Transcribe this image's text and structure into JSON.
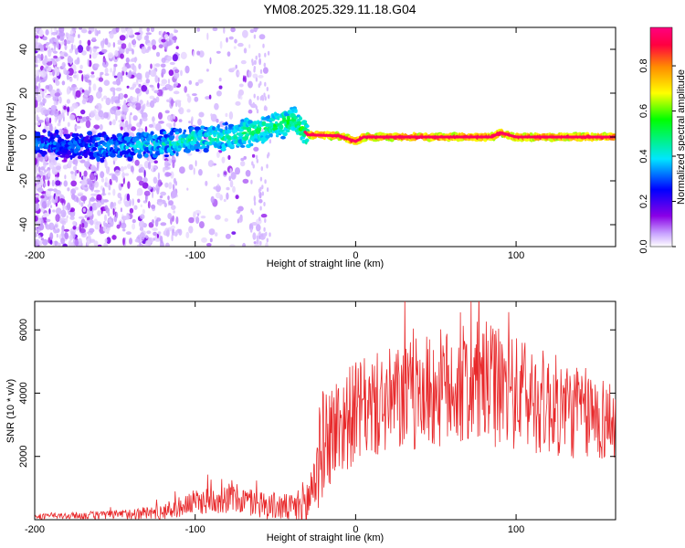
{
  "title": "YM08.2025.329.11.18.G04",
  "chart_data": [
    {
      "type": "heatmap",
      "xlabel": "Height of straight line (km)",
      "ylabel": "Frequency (Hz)",
      "xlim": [
        -200,
        162
      ],
      "ylim": [
        -50,
        50
      ],
      "xticks": [
        -200,
        -100,
        0,
        100
      ],
      "yticks": [
        -40,
        -20,
        0,
        20,
        40
      ],
      "colorbar": {
        "label": "Normalized spectral amplitude",
        "range": [
          0,
          0.97
        ],
        "ticks": [
          0.0,
          0.2,
          0.4,
          0.6,
          0.8
        ],
        "tick_labels": [
          "0.0",
          "0.2",
          "0.4",
          "0.6",
          "0.8"
        ],
        "colormap": [
          "#ffffff",
          "#8a00e6",
          "#0000ff",
          "#00e6ff",
          "#00ff00",
          "#ffff00",
          "#ff8c00",
          "#ff0040",
          "#ff0080"
        ]
      },
      "ridge": {
        "x": [
          -200,
          -180,
          -160,
          -140,
          -120,
          -100,
          -80,
          -60,
          -45,
          -38,
          -30,
          -10,
          0,
          5,
          50,
          85,
          90,
          100,
          162
        ],
        "y": [
          -3,
          -4,
          -4.5,
          -4,
          -3,
          -1,
          0,
          3,
          6,
          8,
          1,
          0.5,
          -2,
          0,
          0,
          0,
          2,
          0,
          0
        ]
      }
    },
    {
      "type": "line",
      "xlabel": "Height of straight line (km)",
      "ylabel": "SNR (10 * v/v)",
      "xlim": [
        -200,
        162
      ],
      "ylim": [
        0,
        6900
      ],
      "xticks": [
        -200,
        -100,
        0,
        100
      ],
      "yticks": [
        2000,
        4000,
        6000
      ],
      "color": "#e8282a",
      "envelope": {
        "x": [
          -200,
          -150,
          -120,
          -100,
          -80,
          -60,
          -40,
          -30,
          -25,
          -20,
          -10,
          0,
          20,
          50,
          80,
          100,
          130,
          162
        ],
        "mean": [
          100,
          150,
          250,
          550,
          700,
          500,
          350,
          500,
          1500,
          2500,
          3000,
          3400,
          3700,
          4100,
          4300,
          4000,
          3500,
          3100
        ],
        "spread": [
          80,
          150,
          250,
          400,
          500,
          450,
          450,
          900,
          1600,
          1700,
          1700,
          1600,
          1700,
          1900,
          2000,
          1800,
          1600,
          1300
        ]
      }
    }
  ]
}
